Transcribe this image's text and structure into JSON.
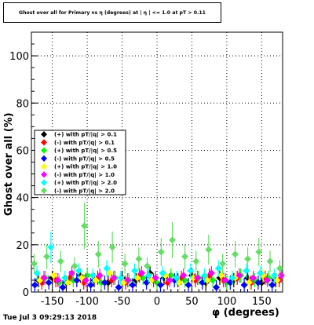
{
  "chart_data": {
    "type": "scatter",
    "title": "Ghost over all for Primary vs η (degrees) at | η | <= 1.0 at pT > 0.11",
    "xlabel": "φ (degrees)",
    "ylabel": "Ghost over all (%)",
    "xlim": [
      -180,
      180
    ],
    "ylim": [
      0,
      110
    ],
    "xticks": [
      -150,
      -100,
      -50,
      0,
      50,
      100,
      150
    ],
    "yticks": [
      0,
      20,
      40,
      60,
      80,
      100
    ],
    "grid": true,
    "legend_position": "left-middle",
    "series": [
      {
        "name": "(+) with pT/|q| > 0.1",
        "color": "#000000",
        "marker": "diamond",
        "x": [
          -170,
          -150,
          -130,
          -110,
          -90,
          -70,
          -50,
          -30,
          -10,
          10,
          30,
          50,
          70,
          90,
          110,
          130,
          150,
          170
        ],
        "y": [
          5,
          6,
          4,
          7,
          5,
          4,
          6,
          5,
          8,
          6,
          5,
          7,
          4,
          6,
          5,
          6,
          4,
          5
        ]
      },
      {
        "name": "(-) with pT/|q| > 0.1",
        "color": "#ff0000",
        "marker": "diamond",
        "x": [
          -165,
          -145,
          -125,
          -105,
          -85,
          -65,
          -45,
          -25,
          -5,
          15,
          35,
          55,
          75,
          95,
          115,
          135,
          155,
          175
        ],
        "y": [
          4,
          5,
          6,
          4,
          6,
          5,
          4,
          7,
          5,
          4,
          6,
          5,
          7,
          5,
          6,
          4,
          6,
          5
        ]
      },
      {
        "name": "(+) with pT/|q| > 0.5",
        "color": "#00ff00",
        "marker": "diamond",
        "x": [
          -160,
          -140,
          -120,
          -100,
          -80,
          -60,
          -40,
          -20,
          0,
          20,
          40,
          60,
          80,
          100,
          120,
          140,
          160
        ],
        "y": [
          6,
          4,
          5,
          7,
          4,
          6,
          5,
          6,
          4,
          7,
          5,
          6,
          5,
          4,
          7,
          5,
          6
        ]
      },
      {
        "name": "(-) with pT/|q| > 0.5",
        "color": "#0000ff",
        "marker": "diamond",
        "x": [
          -175,
          -155,
          -135,
          -115,
          -95,
          -75,
          -55,
          -35,
          -15,
          5,
          25,
          45,
          65,
          85,
          105,
          125,
          145,
          165
        ],
        "y": [
          3,
          4,
          2,
          5,
          3,
          4,
          2,
          3,
          4,
          3,
          5,
          3,
          4,
          2,
          4,
          3,
          4,
          3
        ]
      },
      {
        "name": "(+) with pT/|q| > 1.0",
        "color": "#ffff00",
        "marker": "diamond",
        "x": [
          -168,
          -148,
          -128,
          -108,
          -88,
          -68,
          -48,
          -28,
          -8,
          12,
          32,
          52,
          72,
          92,
          112,
          132,
          152,
          172
        ],
        "y": [
          5,
          7,
          4,
          6,
          5,
          8,
          4,
          6,
          5,
          7,
          4,
          6,
          5,
          7,
          6,
          4,
          7,
          5
        ]
      },
      {
        "name": "(-) with pT/|q| > 1.0",
        "color": "#ff00ff",
        "marker": "diamond",
        "x": [
          -162,
          -142,
          -122,
          -102,
          -82,
          -62,
          -42,
          -22,
          -2,
          18,
          38,
          58,
          78,
          98,
          118,
          138,
          158,
          178
        ],
        "y": [
          6,
          5,
          8,
          5,
          7,
          6,
          5,
          8,
          6,
          5,
          7,
          6,
          8,
          5,
          7,
          6,
          5,
          7
        ]
      },
      {
        "name": "(+) with pT/|q| > 2.0",
        "color": "#00ffff",
        "marker": "diamond",
        "x": [
          -172,
          -152,
          -132,
          -112,
          -92,
          -72,
          -52,
          -32,
          -12,
          8,
          28,
          48,
          68,
          88,
          108,
          128,
          148,
          168
        ],
        "y": [
          8,
          19,
          6,
          9,
          7,
          10,
          6,
          9,
          7,
          8,
          6,
          9,
          7,
          10,
          6,
          9,
          8,
          7
        ]
      },
      {
        "name": "(-) with pT/|q| > 2.0",
        "color": "#66dd66",
        "marker": "diamond",
        "x": [
          -176,
          -158,
          -138,
          -118,
          -104,
          -84,
          -64,
          -46,
          -26,
          -14,
          6,
          22,
          40,
          56,
          74,
          94,
          112,
          130,
          146,
          162,
          176
        ],
        "y": [
          12,
          15,
          13,
          11,
          28,
          16,
          19,
          12,
          14,
          11,
          17,
          22,
          15,
          13,
          18,
          12,
          16,
          14,
          17,
          13,
          10
        ]
      }
    ]
  },
  "footer": {
    "timestamp": "Tue Jul  3 09:29:13 2018"
  }
}
